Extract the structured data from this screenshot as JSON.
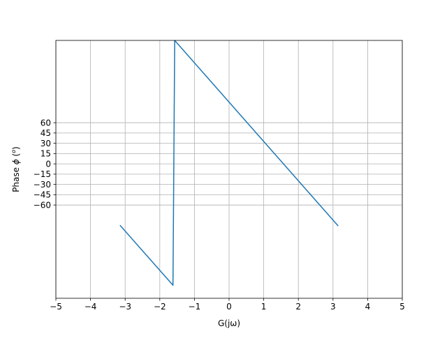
{
  "chart_data": {
    "type": "line",
    "title": "",
    "xlabel": "G(jω)",
    "ylabel_prefix": "Phase ",
    "ylabel_symbol": "ϕ",
    "ylabel_unit_open": " (",
    "ylabel_unit_sup": "o",
    "ylabel_unit_close": ")",
    "xlim": [
      -5,
      5
    ],
    "ylim": [
      -196,
      180
    ],
    "grid": true,
    "xticks": [
      -5,
      -4,
      -3,
      -2,
      -1,
      0,
      1,
      2,
      3,
      4,
      5
    ],
    "xtick_labels": [
      "−5",
      "−4",
      "−3",
      "−2",
      "−1",
      "0",
      "1",
      "2",
      "3",
      "4",
      "5"
    ],
    "yticks": [
      60,
      45,
      30,
      15,
      0,
      -15,
      -30,
      -45,
      -60
    ],
    "ytick_labels": [
      "60",
      "45",
      "30",
      "15",
      "0",
      "−15",
      "−30",
      "−45",
      "−60"
    ],
    "series": [
      {
        "color": "#1f77b4",
        "x": [
          -3.14,
          -1.62,
          -1.57,
          3.14
        ],
        "y": [
          -90,
          -177,
          180,
          -90
        ]
      }
    ]
  }
}
